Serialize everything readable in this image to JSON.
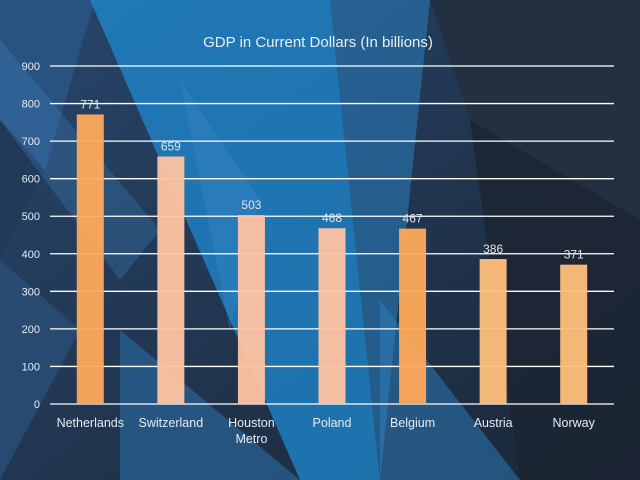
{
  "chart_data": {
    "type": "bar",
    "title": "GDP in Current Dollars (In billions)",
    "categories": [
      "Netherlands",
      "Switzerland",
      "Houston Metro",
      "Poland",
      "Belgium",
      "Austria",
      "Norway"
    ],
    "values": [
      771,
      659,
      503,
      468,
      467,
      386,
      371
    ],
    "value_labels": [
      "771",
      "659",
      "503",
      "468",
      "467",
      "386",
      "371"
    ],
    "y_ticks": [
      "0",
      "100",
      "200",
      "300",
      "400",
      "500",
      "600",
      "700",
      "800",
      "900"
    ],
    "ylim": [
      0,
      900
    ],
    "grid": true,
    "legend": "none",
    "colors": {
      "bar_orange": "#ffa95a",
      "bar_peach": "#ffc4a2",
      "bar_light": "#ffbf7c",
      "gridline": "#ffffff",
      "text": "#e6ecf3"
    },
    "bar_color_keys": [
      "bar_orange",
      "bar_peach",
      "bar_peach",
      "bar_peach",
      "bar_orange",
      "bar_light",
      "bar_light"
    ]
  }
}
